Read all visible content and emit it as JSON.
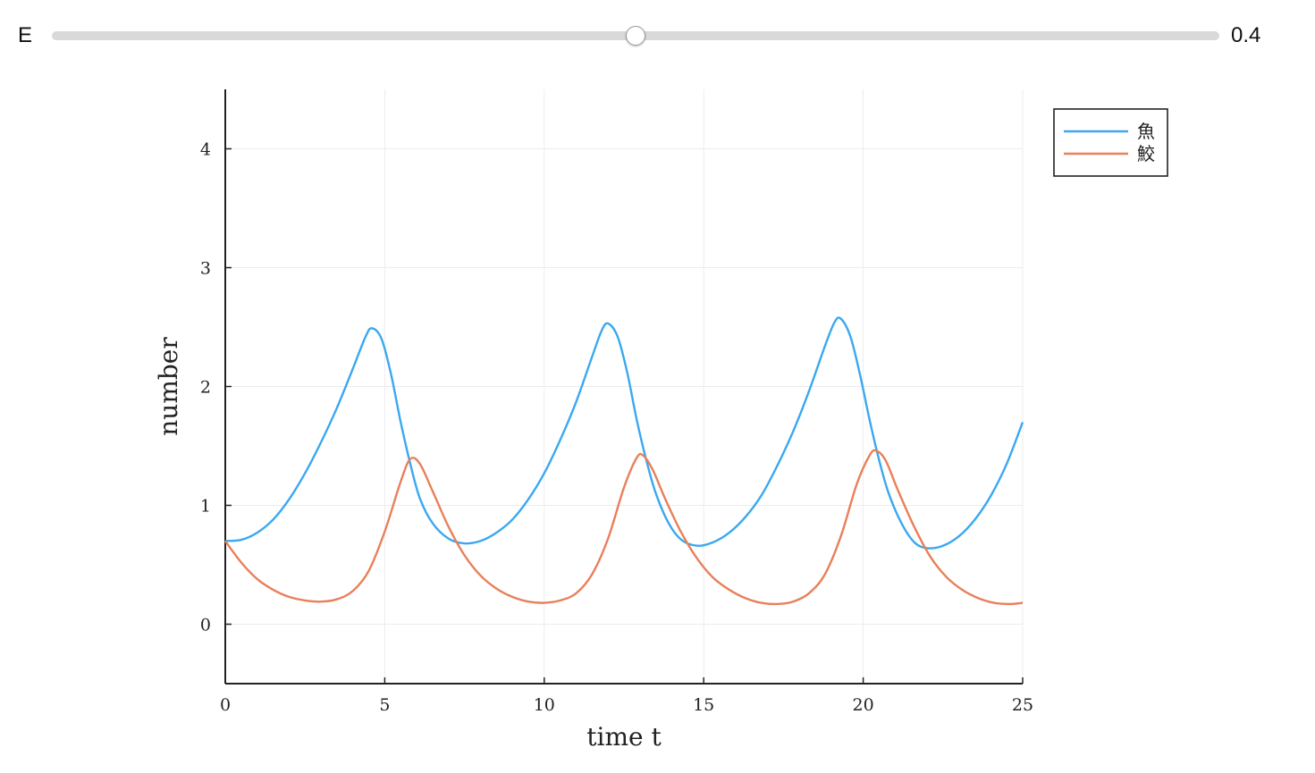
{
  "slider": {
    "label": "E",
    "value": 0.4,
    "value_text": "0.4",
    "fraction": 0.5
  },
  "chart_data": {
    "type": "line",
    "title": "",
    "xlabel": "time t",
    "ylabel": "number",
    "xlim": [
      0,
      25
    ],
    "ylim": [
      -0.5,
      4.5
    ],
    "x_ticks": [
      0,
      5,
      10,
      15,
      20,
      25
    ],
    "y_ticks": [
      0,
      1,
      2,
      3,
      4
    ],
    "grid": true,
    "legend_position": "top-right",
    "series": [
      {
        "name": "魚",
        "color": "#3aa8f0",
        "points": [
          [
            0,
            0.7
          ],
          [
            0.5,
            0.71
          ],
          [
            1,
            0.77
          ],
          [
            1.5,
            0.88
          ],
          [
            2,
            1.05
          ],
          [
            2.5,
            1.27
          ],
          [
            3,
            1.53
          ],
          [
            3.5,
            1.82
          ],
          [
            4,
            2.15
          ],
          [
            4.4,
            2.42
          ],
          [
            4.6,
            2.49
          ],
          [
            4.9,
            2.4
          ],
          [
            5.2,
            2.1
          ],
          [
            5.5,
            1.7
          ],
          [
            5.8,
            1.35
          ],
          [
            6.1,
            1.06
          ],
          [
            6.5,
            0.85
          ],
          [
            7,
            0.72
          ],
          [
            7.5,
            0.68
          ],
          [
            8,
            0.7
          ],
          [
            8.5,
            0.77
          ],
          [
            9,
            0.88
          ],
          [
            9.5,
            1.05
          ],
          [
            10,
            1.27
          ],
          [
            10.5,
            1.55
          ],
          [
            11,
            1.87
          ],
          [
            11.5,
            2.25
          ],
          [
            11.8,
            2.47
          ],
          [
            12,
            2.53
          ],
          [
            12.3,
            2.42
          ],
          [
            12.6,
            2.12
          ],
          [
            12.9,
            1.72
          ],
          [
            13.2,
            1.38
          ],
          [
            13.5,
            1.1
          ],
          [
            13.9,
            0.85
          ],
          [
            14.3,
            0.71
          ],
          [
            14.8,
            0.66
          ],
          [
            15.3,
            0.69
          ],
          [
            15.8,
            0.77
          ],
          [
            16.3,
            0.9
          ],
          [
            16.8,
            1.08
          ],
          [
            17.3,
            1.33
          ],
          [
            17.8,
            1.62
          ],
          [
            18.3,
            1.96
          ],
          [
            18.8,
            2.34
          ],
          [
            19.1,
            2.54
          ],
          [
            19.3,
            2.57
          ],
          [
            19.6,
            2.42
          ],
          [
            19.9,
            2.1
          ],
          [
            20.2,
            1.72
          ],
          [
            20.5,
            1.38
          ],
          [
            20.8,
            1.1
          ],
          [
            21.2,
            0.85
          ],
          [
            21.6,
            0.69
          ],
          [
            22,
            0.64
          ],
          [
            22.5,
            0.66
          ],
          [
            23,
            0.74
          ],
          [
            23.5,
            0.88
          ],
          [
            24,
            1.08
          ],
          [
            24.5,
            1.35
          ],
          [
            25,
            1.7
          ]
        ]
      },
      {
        "name": "鮫",
        "color": "#e8805a",
        "points": [
          [
            0,
            0.7
          ],
          [
            0.5,
            0.52
          ],
          [
            1,
            0.38
          ],
          [
            1.5,
            0.29
          ],
          [
            2,
            0.23
          ],
          [
            2.5,
            0.2
          ],
          [
            3,
            0.19
          ],
          [
            3.5,
            0.21
          ],
          [
            4,
            0.28
          ],
          [
            4.5,
            0.45
          ],
          [
            5,
            0.78
          ],
          [
            5.5,
            1.2
          ],
          [
            5.8,
            1.39
          ],
          [
            6.1,
            1.35
          ],
          [
            6.5,
            1.12
          ],
          [
            7,
            0.82
          ],
          [
            7.5,
            0.58
          ],
          [
            8,
            0.41
          ],
          [
            8.5,
            0.3
          ],
          [
            9,
            0.23
          ],
          [
            9.5,
            0.19
          ],
          [
            10,
            0.18
          ],
          [
            10.5,
            0.2
          ],
          [
            11,
            0.26
          ],
          [
            11.5,
            0.42
          ],
          [
            12,
            0.72
          ],
          [
            12.5,
            1.15
          ],
          [
            12.9,
            1.4
          ],
          [
            13.1,
            1.42
          ],
          [
            13.4,
            1.3
          ],
          [
            13.8,
            1.05
          ],
          [
            14.3,
            0.77
          ],
          [
            14.8,
            0.55
          ],
          [
            15.3,
            0.39
          ],
          [
            15.8,
            0.29
          ],
          [
            16.3,
            0.22
          ],
          [
            16.8,
            0.18
          ],
          [
            17.3,
            0.17
          ],
          [
            17.8,
            0.19
          ],
          [
            18.3,
            0.26
          ],
          [
            18.8,
            0.42
          ],
          [
            19.3,
            0.74
          ],
          [
            19.8,
            1.18
          ],
          [
            20.2,
            1.42
          ],
          [
            20.4,
            1.46
          ],
          [
            20.7,
            1.38
          ],
          [
            21.1,
            1.12
          ],
          [
            21.6,
            0.82
          ],
          [
            22.1,
            0.57
          ],
          [
            22.6,
            0.4
          ],
          [
            23.1,
            0.29
          ],
          [
            23.6,
            0.22
          ],
          [
            24.1,
            0.18
          ],
          [
            24.6,
            0.17
          ],
          [
            25,
            0.18
          ]
        ]
      }
    ]
  }
}
